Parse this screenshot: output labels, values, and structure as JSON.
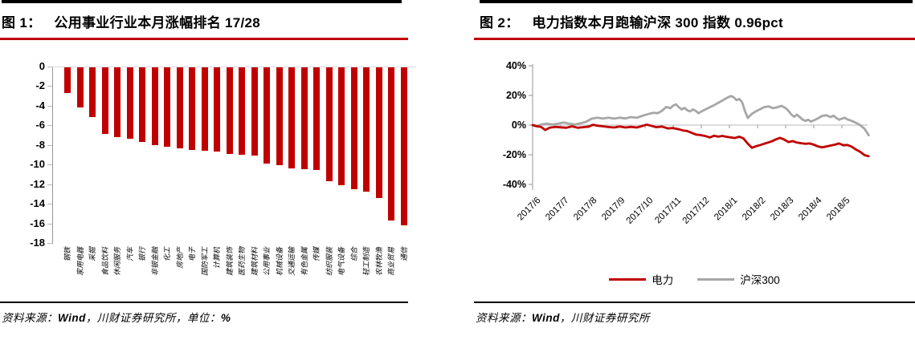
{
  "figure1": {
    "title_prefix": "图 1：",
    "title": "公用事业行业本月涨幅排名 17/28",
    "source": {
      "prefix": "资料来源：",
      "wind": "Wind",
      "rest": "，川财证券研究所，单位：",
      "unit_value": "%"
    }
  },
  "figure2": {
    "title_prefix": "图 2：",
    "title": "电力指数本月跑输沪深 300 指数 0.96pct",
    "source": {
      "prefix": "资料来源：",
      "wind": "Wind",
      "rest": "，川财证券研究所"
    }
  },
  "colors": {
    "accent_red": "#c00000",
    "gray_series": "#a6a6a6",
    "grid_gray": "#d9d9d9",
    "rule_black": "#000000"
  },
  "chart_data": [
    {
      "type": "bar",
      "title": "公用事业行业本月涨幅排名 17/28",
      "unit": "%",
      "bar_color": "#c00000",
      "ylim": [
        -18,
        0
      ],
      "yticks": [
        "0",
        "-2",
        "-4",
        "-6",
        "-8",
        "-10",
        "-12",
        "-14",
        "-16",
        "-18"
      ],
      "grid": false,
      "categories": [
        "钢铁",
        "家用电器",
        "采掘",
        "食品饮料",
        "休闲服务",
        "汽车",
        "银行",
        "非银金融",
        "化工",
        "房地产",
        "电子",
        "国防军工",
        "计算机",
        "建筑装饰",
        "医药生物",
        "建筑材料",
        "公用事业",
        "机械设备",
        "交通运输",
        "有色金属",
        "传媒",
        "纺织服装",
        "电气设备",
        "综合",
        "轻工制造",
        "农林牧渔",
        "商业贸易",
        "通信"
      ],
      "values": [
        -2.6,
        -4.1,
        -5.1,
        -6.8,
        -7.1,
        -7.3,
        -7.6,
        -7.9,
        -8.1,
        -8.3,
        -8.4,
        -8.5,
        -8.6,
        -8.8,
        -8.9,
        -9.0,
        -9.8,
        -10.0,
        -10.3,
        -10.4,
        -10.5,
        -11.6,
        -12.0,
        -12.4,
        -12.7,
        -13.3,
        -15.6,
        -16.1
      ]
    },
    {
      "type": "line",
      "title": "电力指数本月跑输沪深 300 指数 0.96pct",
      "ylim": [
        -40,
        40
      ],
      "yticks": [
        "40%",
        "20%",
        "0%",
        "-20%",
        "-40%"
      ],
      "ytick_values": [
        40,
        20,
        0,
        -20,
        -40
      ],
      "grid": false,
      "legend_position": "bottom",
      "x_ticks": [
        "2017/6",
        "2017/7",
        "2017/8",
        "2017/9",
        "2017/10",
        "2017/11",
        "2017/12",
        "2018/1",
        "2018/2",
        "2018/3",
        "2018/4",
        "2018/5"
      ],
      "x_unit": "months_since_2017_06",
      "series": [
        {
          "name": "沪深300",
          "color": "#a6a6a6",
          "points": [
            [
              0,
              0
            ],
            [
              0.15,
              -0.6
            ],
            [
              0.3,
              0.4
            ],
            [
              0.5,
              1.0
            ],
            [
              0.7,
              0.4
            ],
            [
              0.9,
              1.0
            ],
            [
              1.1,
              1.8
            ],
            [
              1.3,
              0.9
            ],
            [
              1.5,
              0.4
            ],
            [
              1.7,
              1.2
            ],
            [
              1.9,
              2.2
            ],
            [
              2.1,
              4.3
            ],
            [
              2.3,
              5.0
            ],
            [
              2.5,
              4.4
            ],
            [
              2.7,
              5.0
            ],
            [
              2.9,
              4.4
            ],
            [
              3.1,
              5.0
            ],
            [
              3.3,
              4.5
            ],
            [
              3.5,
              5.4
            ],
            [
              3.7,
              4.9
            ],
            [
              3.9,
              6.2
            ],
            [
              4.1,
              7.4
            ],
            [
              4.3,
              8.3
            ],
            [
              4.45,
              8.0
            ],
            [
              4.6,
              9.6
            ],
            [
              4.75,
              12.2
            ],
            [
              4.9,
              11.4
            ],
            [
              5.0,
              13.2
            ],
            [
              5.1,
              14.0
            ],
            [
              5.2,
              12.0
            ],
            [
              5.3,
              10.6
            ],
            [
              5.4,
              11.6
            ],
            [
              5.5,
              10.0
            ],
            [
              5.6,
              9.2
            ],
            [
              5.7,
              10.6
            ],
            [
              5.8,
              9.6
            ],
            [
              5.9,
              8.0
            ],
            [
              6.0,
              9.2
            ],
            [
              6.15,
              10.6
            ],
            [
              6.3,
              12.0
            ],
            [
              6.45,
              13.4
            ],
            [
              6.6,
              15.0
            ],
            [
              6.75,
              16.6
            ],
            [
              6.9,
              18.2
            ],
            [
              7.05,
              19.6
            ],
            [
              7.15,
              18.8
            ],
            [
              7.25,
              16.8
            ],
            [
              7.35,
              17.6
            ],
            [
              7.45,
              15.4
            ],
            [
              7.55,
              9.5
            ],
            [
              7.65,
              4.8
            ],
            [
              7.8,
              7.6
            ],
            [
              7.95,
              9.4
            ],
            [
              8.1,
              10.8
            ],
            [
              8.25,
              12.2
            ],
            [
              8.4,
              12.6
            ],
            [
              8.55,
              11.4
            ],
            [
              8.7,
              12.0
            ],
            [
              8.85,
              13.0
            ],
            [
              9.0,
              11.4
            ],
            [
              9.1,
              9.6
            ],
            [
              9.2,
              7.2
            ],
            [
              9.3,
              5.6
            ],
            [
              9.4,
              7.0
            ],
            [
              9.5,
              5.4
            ],
            [
              9.6,
              3.8
            ],
            [
              9.7,
              2.8
            ],
            [
              9.8,
              3.6
            ],
            [
              9.9,
              2.4
            ],
            [
              10.0,
              3.2
            ],
            [
              10.15,
              4.6
            ],
            [
              10.3,
              6.2
            ],
            [
              10.45,
              6.6
            ],
            [
              10.6,
              5.4
            ],
            [
              10.7,
              6.4
            ],
            [
              10.8,
              4.8
            ],
            [
              10.9,
              3.6
            ],
            [
              11.0,
              4.4
            ],
            [
              11.1,
              5.0
            ],
            [
              11.2,
              3.8
            ],
            [
              11.3,
              3.2
            ],
            [
              11.45,
              2.0
            ],
            [
              11.6,
              0.6
            ],
            [
              11.7,
              -0.8
            ],
            [
              11.8,
              -2.4
            ],
            [
              11.9,
              -5.2
            ],
            [
              11.95,
              -6.8
            ]
          ]
        },
        {
          "name": "电力",
          "color": "#c00000",
          "points": [
            [
              0,
              0
            ],
            [
              0.15,
              -0.8
            ],
            [
              0.3,
              -1.2
            ],
            [
              0.45,
              -3.3
            ],
            [
              0.6,
              -1.8
            ],
            [
              0.8,
              -1.2
            ],
            [
              1.0,
              -1.5
            ],
            [
              1.2,
              -1.8
            ],
            [
              1.4,
              -0.8
            ],
            [
              1.6,
              -1.8
            ],
            [
              1.8,
              -1.4
            ],
            [
              2.0,
              -1.0
            ],
            [
              2.15,
              0.2
            ],
            [
              2.3,
              -0.4
            ],
            [
              2.5,
              -0.8
            ],
            [
              2.7,
              -1.3
            ],
            [
              2.9,
              -1.6
            ],
            [
              3.1,
              -1.0
            ],
            [
              3.3,
              -1.6
            ],
            [
              3.5,
              -1.2
            ],
            [
              3.7,
              -1.6
            ],
            [
              3.9,
              -0.6
            ],
            [
              4.05,
              0.3
            ],
            [
              4.2,
              -0.4
            ],
            [
              4.4,
              -1.4
            ],
            [
              4.6,
              -1.0
            ],
            [
              4.8,
              -2.2
            ],
            [
              5.0,
              -2.0
            ],
            [
              5.2,
              -2.8
            ],
            [
              5.35,
              -3.6
            ],
            [
              5.5,
              -4.0
            ],
            [
              5.65,
              -5.2
            ],
            [
              5.8,
              -6.3
            ],
            [
              6.0,
              -6.8
            ],
            [
              6.15,
              -7.4
            ],
            [
              6.3,
              -8.3
            ],
            [
              6.45,
              -7.2
            ],
            [
              6.6,
              -7.8
            ],
            [
              6.75,
              -7.3
            ],
            [
              6.9,
              -7.9
            ],
            [
              7.05,
              -8.3
            ],
            [
              7.2,
              -8.7
            ],
            [
              7.35,
              -7.8
            ],
            [
              7.5,
              -9.0
            ],
            [
              7.65,
              -12.5
            ],
            [
              7.8,
              -15.3
            ],
            [
              7.95,
              -14.2
            ],
            [
              8.1,
              -13.4
            ],
            [
              8.3,
              -12.2
            ],
            [
              8.5,
              -11.0
            ],
            [
              8.65,
              -9.6
            ],
            [
              8.8,
              -8.6
            ],
            [
              8.95,
              -9.8
            ],
            [
              9.1,
              -11.4
            ],
            [
              9.25,
              -10.8
            ],
            [
              9.4,
              -11.8
            ],
            [
              9.55,
              -12.2
            ],
            [
              9.7,
              -12.6
            ],
            [
              9.85,
              -12.4
            ],
            [
              10.0,
              -13.2
            ],
            [
              10.15,
              -14.4
            ],
            [
              10.3,
              -15.0
            ],
            [
              10.45,
              -14.4
            ],
            [
              10.6,
              -13.8
            ],
            [
              10.75,
              -13.2
            ],
            [
              10.9,
              -12.4
            ],
            [
              11.05,
              -13.6
            ],
            [
              11.2,
              -13.4
            ],
            [
              11.35,
              -14.6
            ],
            [
              11.5,
              -16.5
            ],
            [
              11.65,
              -18.0
            ],
            [
              11.8,
              -20.2
            ],
            [
              11.95,
              -21.0
            ]
          ]
        }
      ],
      "legend": [
        "电力",
        "沪深300"
      ]
    }
  ]
}
